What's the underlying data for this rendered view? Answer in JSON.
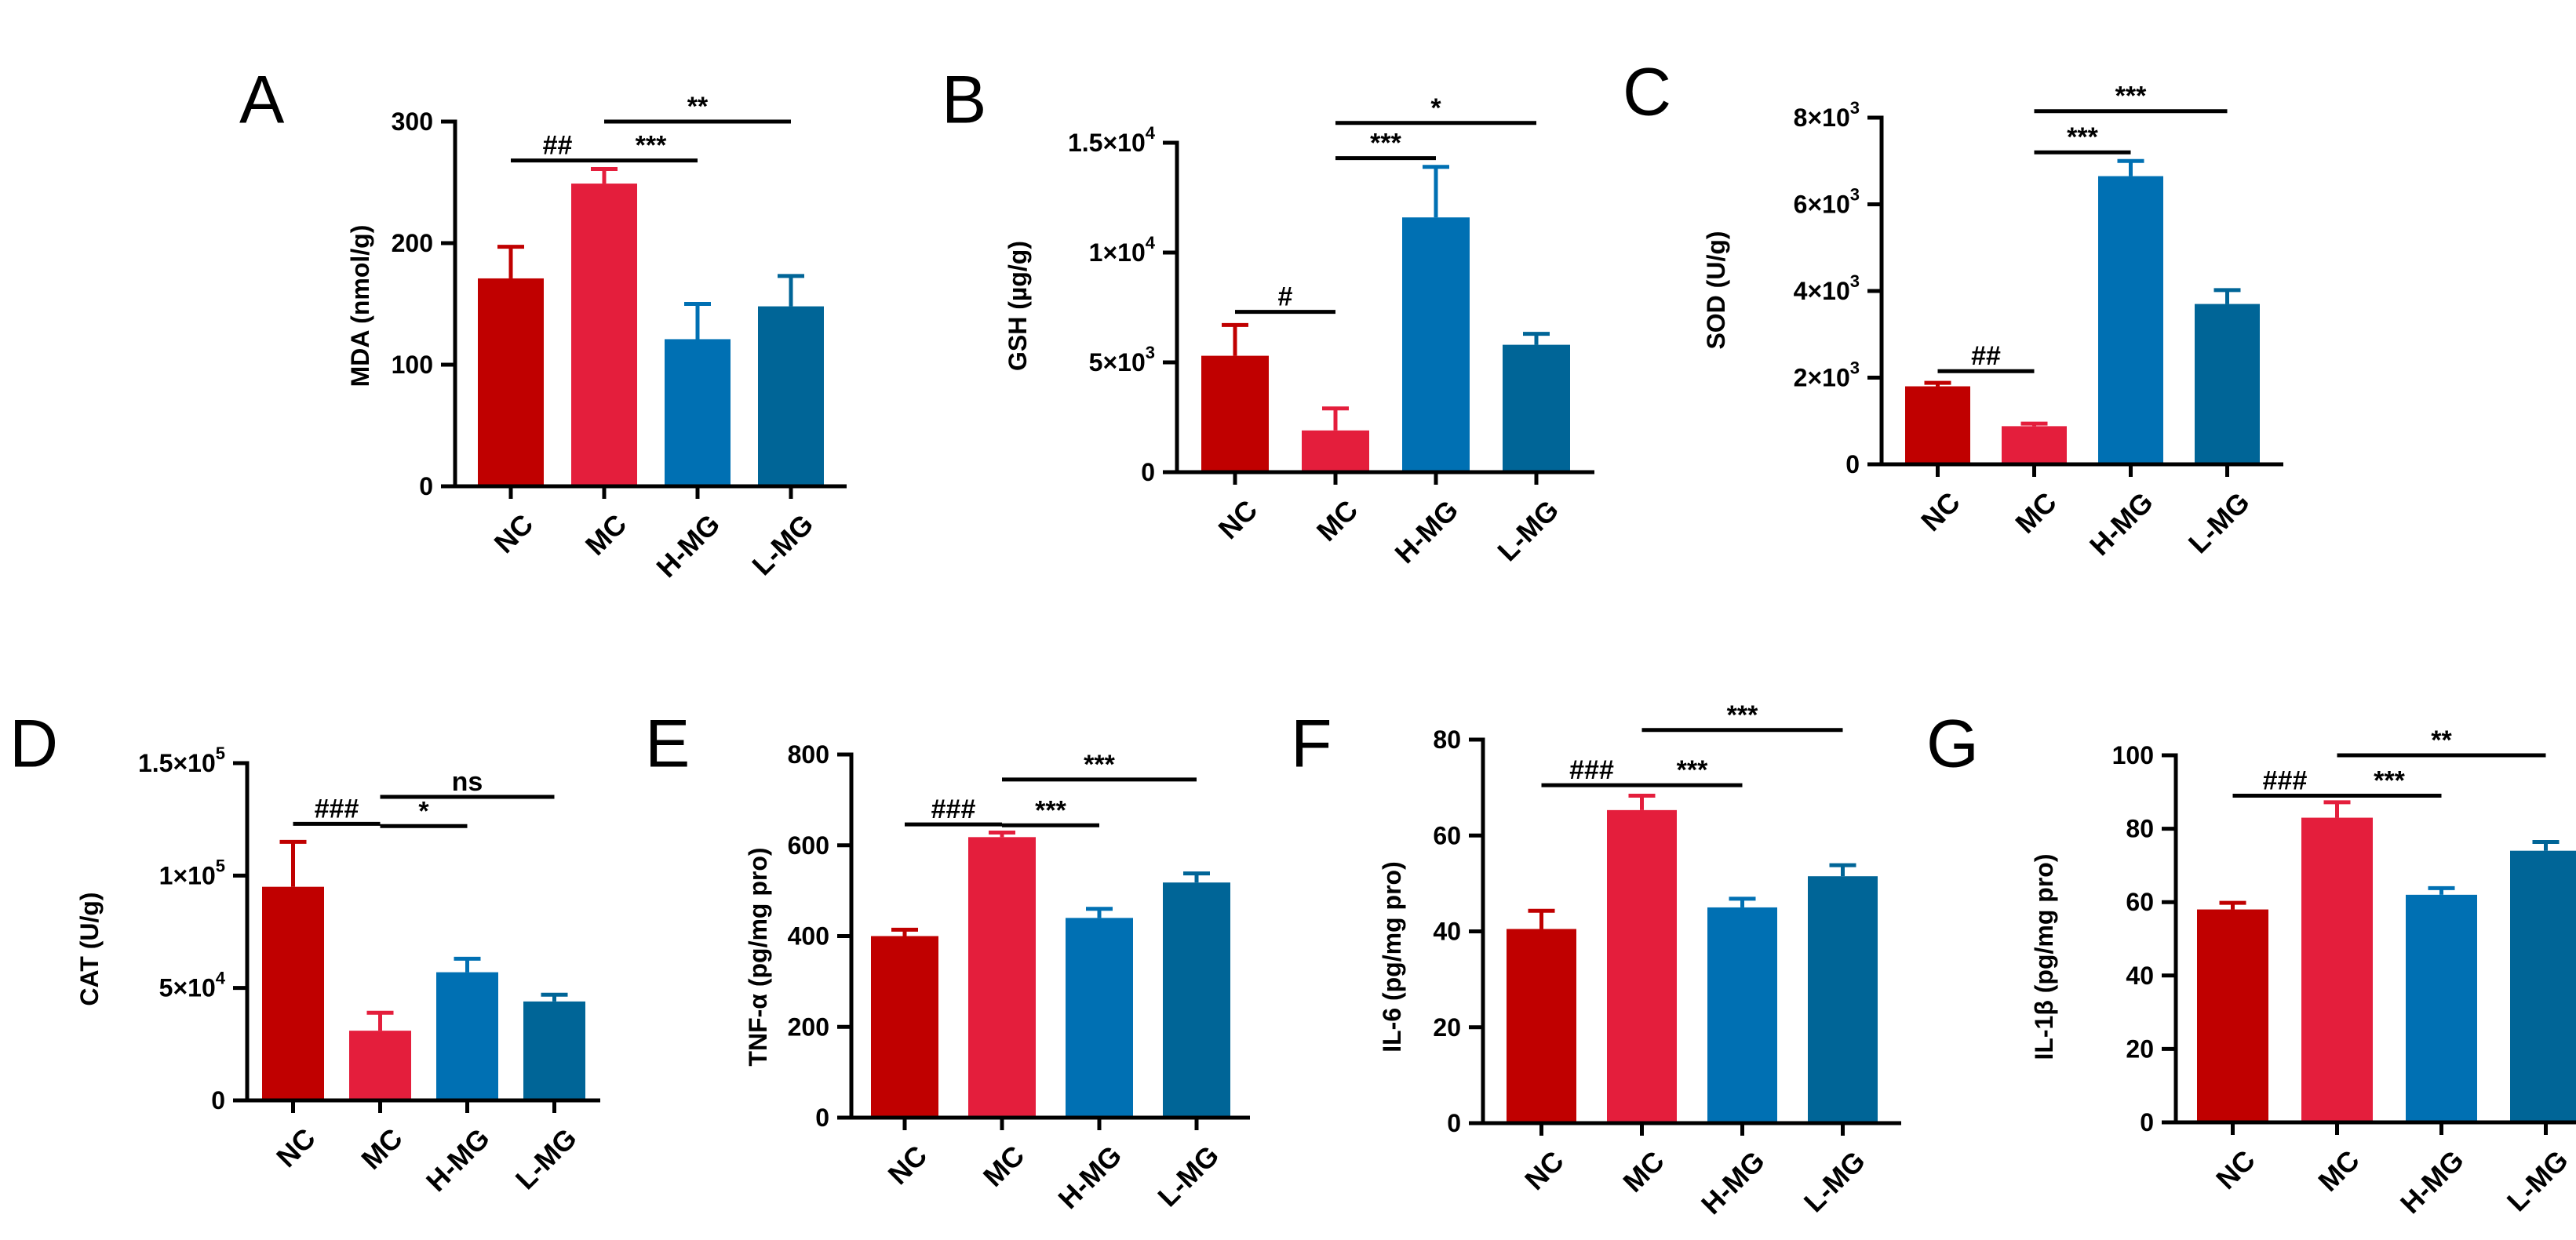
{
  "colors": {
    "NC": "#C00000",
    "MC": "#E41E3C",
    "H-MG": "#0070B3",
    "L-MG": "#006597",
    "axis": "#000000"
  },
  "chart_data": [
    {
      "id": "A",
      "letter": "A",
      "type": "bar",
      "ylabel": "MDA (nmol/g)",
      "categories": [
        "NC",
        "MC",
        "H-MG",
        "L-MG"
      ],
      "values": [
        171,
        249,
        121,
        148
      ],
      "errors": [
        26,
        12,
        29,
        25
      ],
      "ylim": [
        0,
        300
      ],
      "ticks": [
        0,
        100,
        200,
        300
      ],
      "tick_labels": [
        "0",
        "100",
        "200",
        "300"
      ],
      "significance": [
        {
          "from": 0,
          "to": 1,
          "label": "##",
          "y": 268
        },
        {
          "from": 1,
          "to": 2,
          "label": "***",
          "y": 268
        },
        {
          "from": 1,
          "to": 3,
          "label": "**",
          "y": 300
        }
      ]
    },
    {
      "id": "B",
      "letter": "B",
      "type": "bar",
      "ylabel": "GSH (µg/g)",
      "categories": [
        "NC",
        "MC",
        "H-MG",
        "L-MG"
      ],
      "values": [
        5300,
        1900,
        11600,
        5800
      ],
      "errors": [
        1400,
        1000,
        2300,
        500
      ],
      "ylim": [
        0,
        15000
      ],
      "ticks": [
        0,
        5000,
        10000,
        15000
      ],
      "tick_labels": [
        {
          "base": "0",
          "exp": ""
        },
        {
          "base": "5×10",
          "exp": "3"
        },
        {
          "base": "1×10",
          "exp": "4"
        },
        {
          "base": "1.5×10",
          "exp": "4"
        }
      ],
      "significance": [
        {
          "from": 0,
          "to": 1,
          "label": "#",
          "y": 7300
        },
        {
          "from": 1,
          "to": 2,
          "label": "***",
          "y": 14300
        },
        {
          "from": 1,
          "to": 3,
          "label": "*",
          "y": 15900
        }
      ]
    },
    {
      "id": "C",
      "letter": "C",
      "type": "bar",
      "ylabel": "SOD (U/g)",
      "categories": [
        "NC",
        "MC",
        "H-MG",
        "L-MG"
      ],
      "values": [
        1800,
        880,
        6650,
        3700
      ],
      "errors": [
        80,
        60,
        350,
        320
      ],
      "ylim": [
        0,
        8000
      ],
      "ticks": [
        0,
        2000,
        4000,
        6000,
        8000
      ],
      "tick_labels": [
        {
          "base": "0",
          "exp": ""
        },
        {
          "base": "2×10",
          "exp": "3"
        },
        {
          "base": "4×10",
          "exp": "3"
        },
        {
          "base": "6×10",
          "exp": "3"
        },
        {
          "base": "8×10",
          "exp": "3"
        }
      ],
      "significance": [
        {
          "from": 0,
          "to": 1,
          "label": "##",
          "y": 2150
        },
        {
          "from": 1,
          "to": 2,
          "label": "***",
          "y": 7200
        },
        {
          "from": 1,
          "to": 3,
          "label": "***",
          "y": 8150
        }
      ]
    },
    {
      "id": "D",
      "letter": "D",
      "type": "bar",
      "ylabel": "CAT (U/g)",
      "categories": [
        "NC",
        "MC",
        "H-MG",
        "L-MG"
      ],
      "values": [
        95000,
        31000,
        57000,
        44000
      ],
      "errors": [
        20000,
        8000,
        6000,
        3000
      ],
      "ylim": [
        0,
        150000
      ],
      "ticks": [
        0,
        50000,
        100000,
        150000
      ],
      "tick_labels": [
        {
          "base": "0",
          "exp": ""
        },
        {
          "base": "5×10",
          "exp": "4"
        },
        {
          "base": "1×10",
          "exp": "5"
        },
        {
          "base": "1.5×10",
          "exp": "5"
        }
      ],
      "significance": [
        {
          "from": 0,
          "to": 1,
          "label": "###",
          "y": 123000
        },
        {
          "from": 1,
          "to": 2,
          "label": "*",
          "y": 122000
        },
        {
          "from": 1,
          "to": 3,
          "label": "ns",
          "y": 135000
        }
      ]
    },
    {
      "id": "E",
      "letter": "E",
      "type": "bar",
      "ylabel": "TNF-α (pg/mg pro)",
      "categories": [
        "NC",
        "MC",
        "H-MG",
        "L-MG"
      ],
      "values": [
        400,
        618,
        440,
        518
      ],
      "errors": [
        14,
        10,
        20,
        20
      ],
      "ylim": [
        0,
        800
      ],
      "ticks": [
        0,
        200,
        400,
        600,
        800
      ],
      "tick_labels": [
        "0",
        "200",
        "400",
        "600",
        "800"
      ],
      "significance": [
        {
          "from": 0,
          "to": 1,
          "label": "###",
          "y": 646
        },
        {
          "from": 1,
          "to": 2,
          "label": "***",
          "y": 644
        },
        {
          "from": 1,
          "to": 3,
          "label": "***",
          "y": 745
        }
      ]
    },
    {
      "id": "F",
      "letter": "F",
      "type": "bar",
      "ylabel": "IL-6 (pg/mg pro)",
      "categories": [
        "NC",
        "MC",
        "H-MG",
        "L-MG"
      ],
      "values": [
        40.5,
        65.3,
        45.0,
        51.5
      ],
      "errors": [
        3.8,
        3.0,
        1.8,
        2.3
      ],
      "ylim": [
        0,
        80
      ],
      "ticks": [
        0,
        20,
        40,
        60,
        80
      ],
      "tick_labels": [
        "0",
        "20",
        "40",
        "60",
        "80"
      ],
      "significance": [
        {
          "from": 0,
          "to": 1,
          "label": "###",
          "y": 70.5
        },
        {
          "from": 1,
          "to": 2,
          "label": "***",
          "y": 70.5
        },
        {
          "from": 1,
          "to": 3,
          "label": "***",
          "y": 82
        }
      ]
    },
    {
      "id": "G",
      "letter": "G",
      "type": "bar",
      "ylabel": "IL-1β (pg/mg pro)",
      "categories": [
        "NC",
        "MC",
        "H-MG",
        "L-MG"
      ],
      "values": [
        58,
        83,
        62,
        74
      ],
      "errors": [
        1.8,
        4.2,
        1.8,
        2.4
      ],
      "ylim": [
        0,
        100
      ],
      "ticks": [
        0,
        20,
        40,
        60,
        80,
        100
      ],
      "tick_labels": [
        "0",
        "20",
        "40",
        "60",
        "80",
        "100"
      ],
      "significance": [
        {
          "from": 0,
          "to": 1,
          "label": "###",
          "y": 89
        },
        {
          "from": 1,
          "to": 2,
          "label": "***",
          "y": 89
        },
        {
          "from": 1,
          "to": 3,
          "label": "**",
          "y": 100
        }
      ]
    }
  ]
}
